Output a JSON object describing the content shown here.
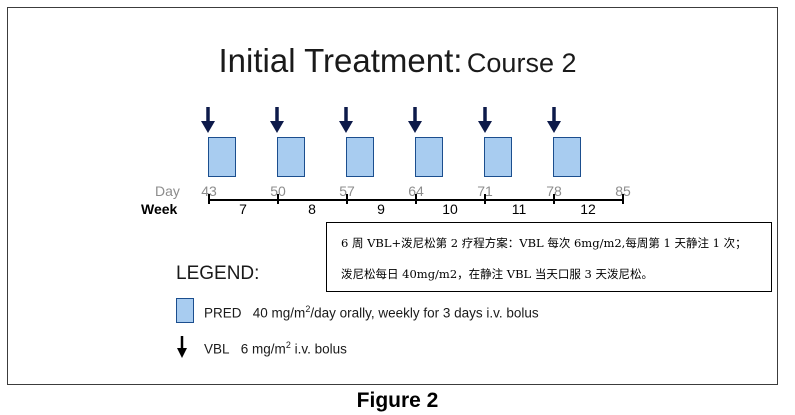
{
  "figure": {
    "title_main": "Initial Treatment:",
    "title_sub": "Course 2",
    "caption": "Figure 2"
  },
  "timeline": {
    "day_label": "Day",
    "week_label": "Week",
    "days": [
      "43",
      "50",
      "57",
      "64",
      "71",
      "78",
      "85"
    ],
    "weeks": [
      "7",
      "8",
      "9",
      "10",
      "11",
      "12"
    ],
    "colors": {
      "box_fill": "#a8ccf0",
      "box_border": "#1b4e8e",
      "arrow": "#0d1a4a"
    }
  },
  "legend": {
    "title": "LEGEND:",
    "pred_name": "PRED",
    "pred_dose": "40 mg/m",
    "pred_sup": "2",
    "pred_rest": "/day orally, weekly for 3 days i.v. bolus",
    "vbl_name": "VBL",
    "vbl_dose": "6 mg/m",
    "vbl_sup": "2",
    "vbl_rest": " i.v. bolus"
  },
  "note": {
    "line1": "6 周 VBL+泼尼松第 2 疗程方案：VBL 每次 6mg/m2,每周第 1 天静注 1 次；",
    "line2": "泼尼松每日 40mg/m2，在静注 VBL 当天口服 3 天泼尼松。"
  }
}
